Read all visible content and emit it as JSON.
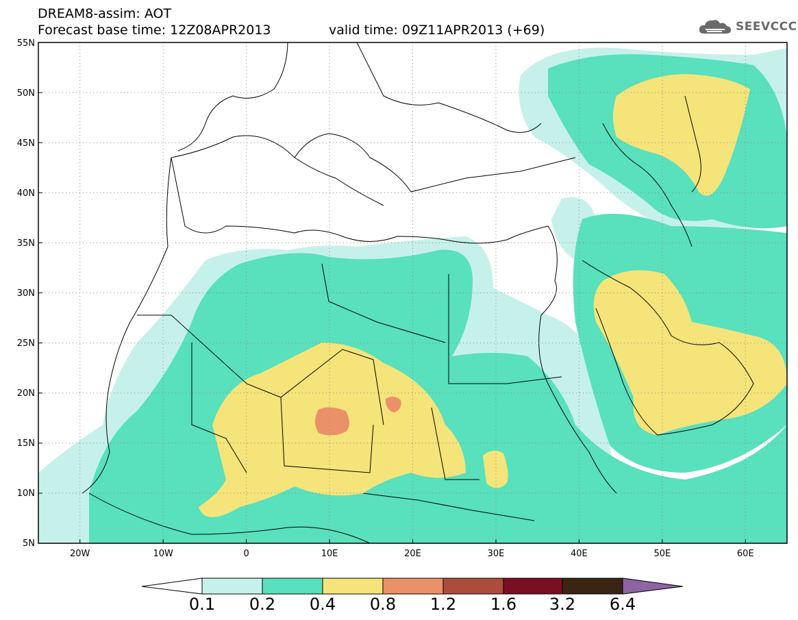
{
  "header": {
    "line1": "DREAM8-assim: AOT",
    "line2": "Forecast base time: 12Z08APR2013",
    "valid": "valid time: 09Z11APR2013 (+69)",
    "logo": "SEEVCCC"
  },
  "map": {
    "projection": "lat-lon",
    "lon_range": [
      -25,
      65
    ],
    "lat_range": [
      5,
      55
    ],
    "lat_ticks": [
      "55N",
      "50N",
      "45N",
      "40N",
      "35N",
      "30N",
      "25N",
      "20N",
      "15N",
      "10N",
      "5N"
    ],
    "lon_ticks": [
      "20W",
      "10W",
      "0",
      "10E",
      "20E",
      "30E",
      "40E",
      "50E",
      "60E"
    ],
    "grid": "dotted"
  },
  "legend": {
    "labels": [
      "0.1",
      "0.2",
      "0.4",
      "0.8",
      "1.2",
      "1.6",
      "3.2",
      "6.4"
    ],
    "colors": [
      "#ffffff",
      "#c6f1ea",
      "#59e0bc",
      "#f5e47a",
      "#eb9169",
      "#ac4d3c",
      "#7a0f24",
      "#3a2412",
      "#8e64a5"
    ]
  }
}
